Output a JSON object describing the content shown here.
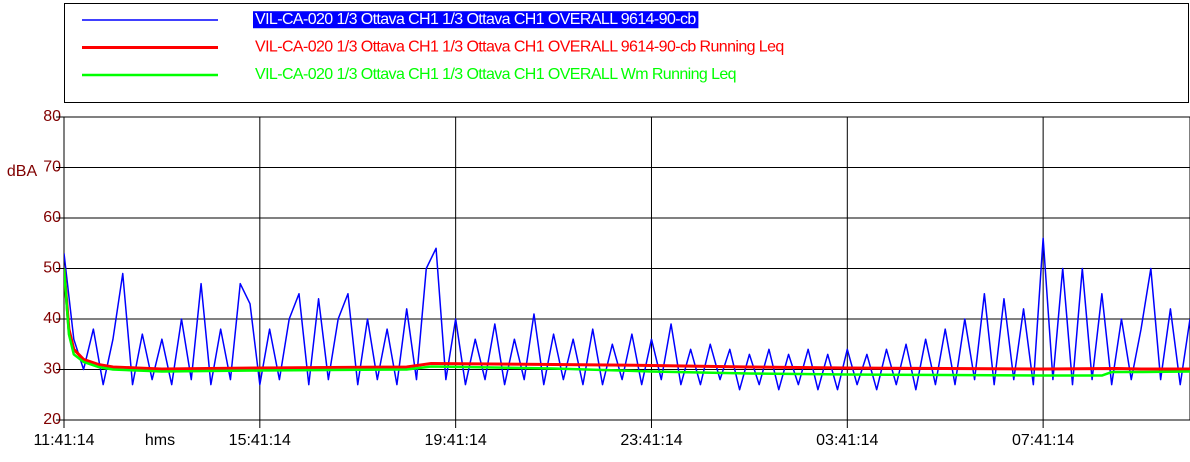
{
  "chart_data": {
    "type": "line",
    "y_label": "dBA",
    "x_label": "hms",
    "xlim": [
      0,
      23
    ],
    "ylim": [
      20,
      80
    ],
    "yticks": [
      20,
      30,
      40,
      50,
      60,
      70,
      80
    ],
    "xticks": [
      {
        "value": 0,
        "label": "11:41:14"
      },
      {
        "value": 4,
        "label": "15:41:14"
      },
      {
        "value": 8,
        "label": "19:41:14"
      },
      {
        "value": 12,
        "label": "23:41:14"
      },
      {
        "value": 16,
        "label": "03:41:14"
      },
      {
        "value": 20,
        "label": "07:41:14"
      }
    ],
    "grid": true,
    "series": [
      {
        "name": "VIL-CA-020 1/3 Ottava CH1 1/3 Ottava CH1 OVERALL 9614-90-cb",
        "color": "#0000ff",
        "highlighted": true,
        "x": [
          0,
          0.2,
          0.4,
          0.6,
          0.8,
          1,
          1.2,
          1.4,
          1.6,
          1.8,
          2,
          2.2,
          2.4,
          2.6,
          2.8,
          3,
          3.2,
          3.4,
          3.6,
          3.8,
          4,
          4.2,
          4.4,
          4.6,
          4.8,
          5,
          5.2,
          5.4,
          5.6,
          5.8,
          6,
          6.2,
          6.4,
          6.6,
          6.8,
          7,
          7.2,
          7.4,
          7.6,
          7.8,
          8,
          8.2,
          8.4,
          8.6,
          8.8,
          9,
          9.2,
          9.4,
          9.6,
          9.8,
          10,
          10.2,
          10.4,
          10.6,
          10.8,
          11,
          11.2,
          11.4,
          11.6,
          11.8,
          12,
          12.2,
          12.4,
          12.6,
          12.8,
          13,
          13.2,
          13.4,
          13.6,
          13.8,
          14,
          14.2,
          14.4,
          14.6,
          14.8,
          15,
          15.2,
          15.4,
          15.6,
          15.8,
          16,
          16.2,
          16.4,
          16.6,
          16.8,
          17,
          17.2,
          17.4,
          17.6,
          17.8,
          18,
          18.2,
          18.4,
          18.6,
          18.8,
          19,
          19.2,
          19.4,
          19.6,
          19.8,
          20,
          20.2,
          20.4,
          20.6,
          20.8,
          21,
          21.2,
          21.4,
          21.6,
          21.8,
          22,
          22.2,
          22.4,
          22.6,
          22.8,
          23
        ],
        "values": [
          53,
          36,
          30,
          38,
          27,
          36,
          49,
          27,
          37,
          28,
          36,
          27,
          40,
          28,
          47,
          27,
          38,
          28,
          47,
          43,
          27,
          38,
          28,
          40,
          45,
          27,
          44,
          28,
          40,
          45,
          27,
          40,
          28,
          38,
          27,
          42,
          28,
          50,
          54,
          28,
          40,
          27,
          36,
          28,
          39,
          27,
          36,
          28,
          41,
          27,
          37,
          28,
          36,
          27,
          38,
          27,
          35,
          28,
          37,
          27,
          36,
          28,
          39,
          27,
          34,
          27,
          35,
          28,
          34,
          26,
          33,
          27,
          34,
          26,
          33,
          27,
          34,
          26,
          33,
          26,
          34,
          27,
          33,
          26,
          34,
          27,
          35,
          26,
          36,
          27,
          38,
          27,
          40,
          28,
          45,
          27,
          44,
          28,
          42,
          27,
          56,
          28,
          50,
          27,
          50,
          28,
          45,
          27,
          40,
          28,
          38,
          50,
          28,
          42,
          27,
          40
        ]
      },
      {
        "name": "VIL-CA-020 1/3 Ottava CH1 1/3 Ottava CH1 OVERALL 9614-90-cb Running Leq",
        "color": "#ff0000",
        "x": [
          0,
          0.1,
          0.2,
          0.4,
          0.7,
          1,
          1.5,
          2,
          4,
          7,
          7.5,
          10,
          12,
          14,
          16,
          18,
          20,
          21.5,
          22,
          23
        ],
        "values": [
          50,
          38,
          34,
          32,
          31,
          30.5,
          30.3,
          30.1,
          30.3,
          30.5,
          31.2,
          31,
          30.8,
          30.5,
          30.3,
          30.2,
          30.1,
          30.2,
          30.1,
          30.1
        ]
      },
      {
        "name": "VIL-CA-020 1/3 Ottava CH1 1/3 Ottava CH1 OVERALL Wm Running Leq",
        "color": "#00ff00",
        "x": [
          0,
          0.1,
          0.2,
          0.4,
          0.7,
          1,
          1.5,
          2,
          4,
          7,
          7.5,
          10,
          12,
          14,
          16,
          18,
          20,
          21.2,
          21.4,
          22,
          23
        ],
        "values": [
          50,
          37,
          33,
          31.5,
          30.5,
          30,
          29.8,
          29.6,
          29.8,
          30,
          30.6,
          30.2,
          29.6,
          29.2,
          29,
          28.9,
          28.8,
          28.8,
          29.5,
          29.5,
          29.6
        ]
      }
    ]
  }
}
